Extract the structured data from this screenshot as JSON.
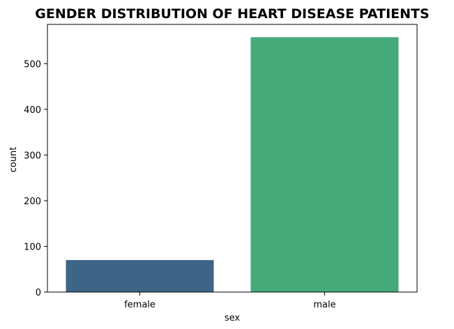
{
  "chart_data": {
    "type": "bar",
    "title": "GENDER DISTRIBUTION OF HEART DISEASE PATIENTS",
    "xlabel": "sex",
    "ylabel": "count",
    "categories": [
      "female",
      "male"
    ],
    "values": [
      70,
      558
    ],
    "colors": [
      "#3e6586",
      "#46a97a"
    ],
    "ylim": [
      0,
      586
    ],
    "yticks": [
      0,
      100,
      200,
      300,
      400,
      500
    ],
    "grid": false,
    "legend": "none"
  }
}
